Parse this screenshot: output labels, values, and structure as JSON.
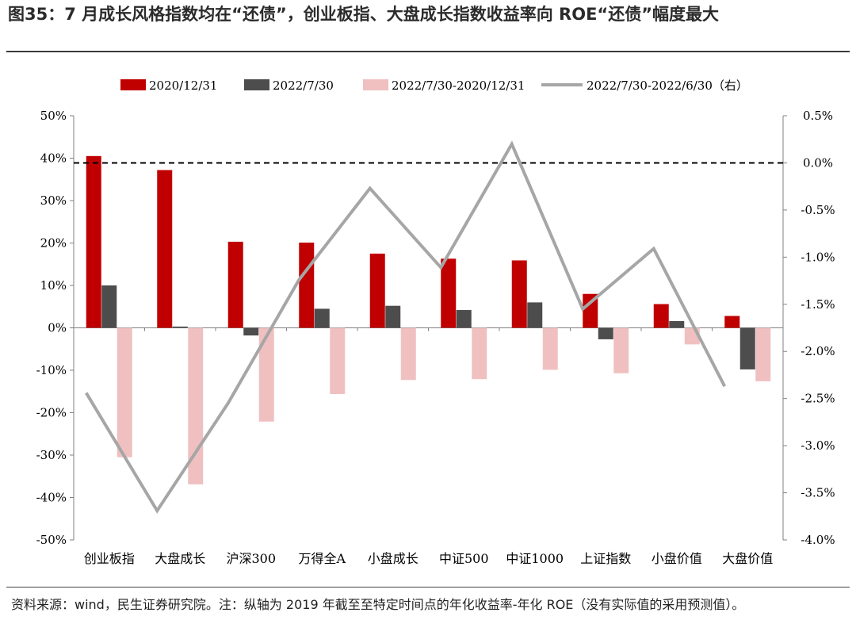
{
  "title": "图35：7 月成长风格指数均在“还债”，创业板指、大盘成长指数收益率向 ROE“还债”幅度最大",
  "source": "资料来源：wind，民生证券研究院。注：纵轴为 2019 年截至至特定时间点的年化收益率-年化 ROE（没有实际值的采用预测值）。",
  "colors": {
    "s2020": "#c00000",
    "s2022": "#4d4d4d",
    "sdiff": "#f0c0c0",
    "sline": "#a6a6a6",
    "axis": "#808080"
  },
  "chart_data": {
    "type": "bar+line",
    "categories": [
      "创业板指",
      "大盘成长",
      "沪深300",
      "万得全A",
      "小盘成长",
      "中证500",
      "中证1000",
      "上证指数",
      "小盘价值",
      "大盘价值"
    ],
    "series": [
      {
        "name": "2020/12/31",
        "type": "bar",
        "axis": "left",
        "values": [
          40.5,
          37.2,
          20.3,
          20.1,
          17.5,
          16.3,
          15.9,
          8.0,
          5.6,
          2.8
        ]
      },
      {
        "name": "2022/7/30",
        "type": "bar",
        "axis": "left",
        "values": [
          10.0,
          0.3,
          -1.8,
          4.5,
          5.2,
          4.2,
          6.0,
          -2.7,
          1.6,
          -9.8
        ]
      },
      {
        "name": "2022/7/30-2020/12/31",
        "type": "bar",
        "axis": "left",
        "values": [
          -30.5,
          -36.9,
          -22.1,
          -15.6,
          -12.3,
          -12.1,
          -9.9,
          -10.7,
          -3.9,
          -12.6
        ]
      },
      {
        "name": "2022/7/30-2022/6/30（右）",
        "type": "line",
        "axis": "right",
        "values": [
          -2.44,
          -3.69,
          -2.55,
          -1.24,
          -0.27,
          -1.11,
          0.2,
          -1.55,
          -0.91,
          -2.37
        ]
      }
    ],
    "y_left": {
      "min": -50,
      "max": 50,
      "step": 10,
      "ticks": [
        "50%",
        "40%",
        "30%",
        "20%",
        "10%",
        "0%",
        "-10%",
        "-20%",
        "-30%",
        "-40%",
        "-50%"
      ]
    },
    "y_right": {
      "min": -4.0,
      "max": 0.5,
      "step": 0.5,
      "ticks": [
        "0.5%",
        "0.0%",
        "-0.5%",
        "-1.0%",
        "-1.5%",
        "-2.0%",
        "-2.5%",
        "-3.0%",
        "-3.5%",
        "-4.0%"
      ]
    },
    "reference_line": {
      "axis": "right",
      "value": 0.0,
      "style": "dashed"
    },
    "legend_position": "top",
    "grid": false
  }
}
